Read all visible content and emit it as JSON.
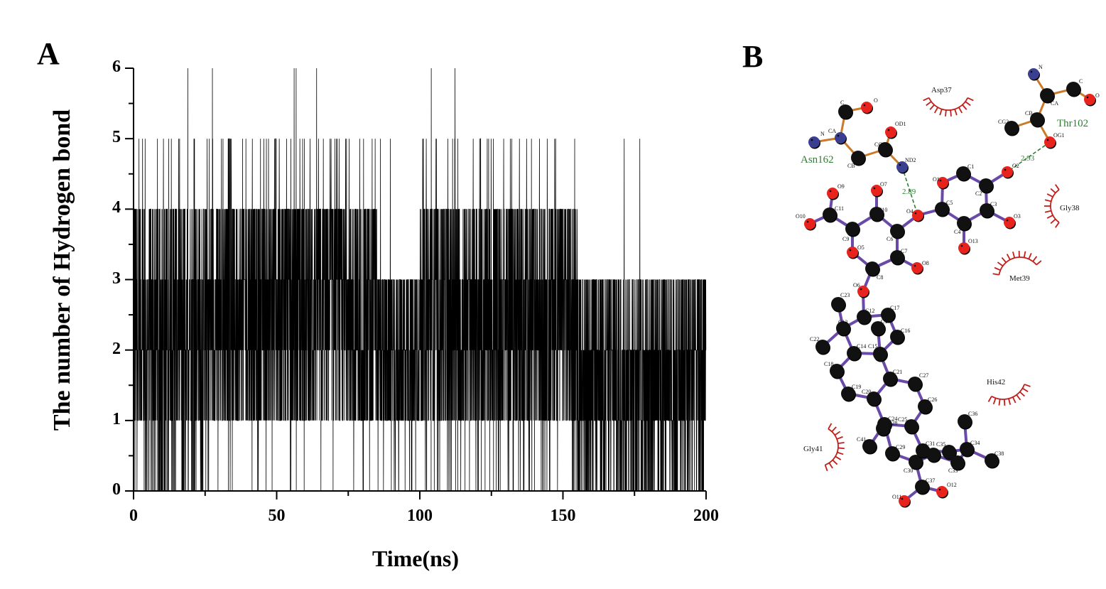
{
  "figure": {
    "panel_a_label": "A",
    "panel_b_label": "B"
  },
  "chart_data": {
    "type": "line",
    "title": "",
    "xlabel": "Time(ns)",
    "ylabel": "The number of Hydrogen bond",
    "xlim": [
      0,
      200
    ],
    "ylim": [
      0,
      6
    ],
    "x_ticks": [
      "0",
      "50",
      "100",
      "150",
      "200"
    ],
    "y_ticks": [
      "0",
      "1",
      "2",
      "3",
      "4",
      "5",
      "6"
    ],
    "grid": false,
    "legend": null,
    "description": "Dense time series of H-bond count fluctuating mostly between 1 and 4 over 0-200 ns; occasional spikes to 5 and 6 (mostly 10-130 ns); frequent drops to 0 especially after ~155 ns.",
    "segments": [
      {
        "x_range": [
          0,
          25
        ],
        "typical_range": [
          0,
          4
        ],
        "max": 6
      },
      {
        "x_range": [
          25,
          85
        ],
        "typical_range": [
          1,
          4
        ],
        "max": 6
      },
      {
        "x_range": [
          85,
          100
        ],
        "typical_range": [
          1,
          3
        ],
        "max": 5
      },
      {
        "x_range": [
          100,
          155
        ],
        "typical_range": [
          1,
          4
        ],
        "max": 6
      },
      {
        "x_range": [
          155,
          200
        ],
        "typical_range": [
          0,
          3
        ],
        "max": 5
      }
    ],
    "series": [
      {
        "name": "H-bonds",
        "color": "#000000"
      }
    ]
  },
  "molecule": {
    "residues_hbond": [
      {
        "name": "Asn162",
        "color": "#2e7d32",
        "distance": "2.89",
        "atoms": [
          "N",
          "CA",
          "C",
          "O",
          "CB",
          "CG",
          "OD1",
          "ND2"
        ]
      },
      {
        "name": "Thr102",
        "color": "#2e7d32",
        "distance": "2.93",
        "atoms": [
          "N",
          "CA",
          "C",
          "O",
          "CB",
          "CG2",
          "OG1"
        ]
      }
    ],
    "residues_hydrophobic": [
      "Asp37",
      "Gly38",
      "Met39",
      "His42",
      "Gly41"
    ],
    "ligand_atoms": [
      "O1",
      "C1",
      "C2",
      "O2",
      "C3",
      "O3",
      "C4",
      "O13",
      "C5",
      "O4",
      "C6",
      "C7",
      "O8",
      "C8",
      "O6",
      "O5",
      "C9",
      "C10",
      "O7",
      "C11",
      "O9",
      "O10",
      "C12",
      "C13",
      "C14",
      "C15",
      "C16",
      "C17",
      "C18",
      "C19",
      "C20",
      "C21",
      "C22",
      "C23",
      "C24",
      "C25",
      "C26",
      "C27",
      "C28",
      "C29",
      "C30",
      "C31",
      "C32",
      "C33",
      "C34",
      "C35",
      "C36",
      "C37",
      "C38",
      "C41",
      "O11",
      "O12"
    ],
    "colors": {
      "ligand_bond": "#6a4aa8",
      "residue_bond": "#c97a2a",
      "carbon": "#111111",
      "oxygen": "#e8231e",
      "nitrogen": "#3a3f8f",
      "hydrophobic_arc": "#c0201c",
      "hbond_line": "#2e7d32"
    }
  }
}
